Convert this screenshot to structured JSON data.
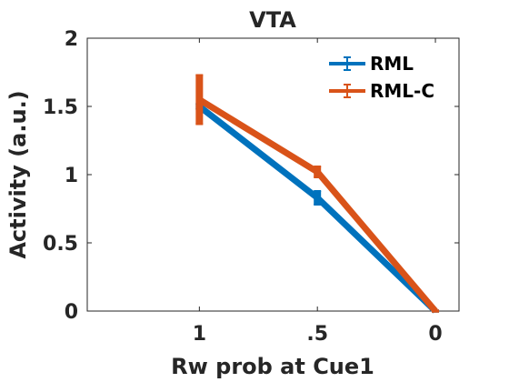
{
  "chart_data": {
    "type": "line",
    "title": "VTA",
    "xlabel": "Rw prob at Cue1",
    "ylabel": "Activity (a.u.)",
    "categories": [
      "1",
      ".5",
      "0"
    ],
    "x": [
      1,
      2,
      3
    ],
    "xlim": [
      0.05,
      3.2
    ],
    "ylim": [
      0,
      2
    ],
    "yticks": [
      0,
      0.5,
      1,
      1.5,
      2
    ],
    "ytick_labels": [
      "0",
      "0.5",
      "1",
      "1.5",
      "2"
    ],
    "grid": false,
    "legend_position": "top-right",
    "series": [
      {
        "name": "RML",
        "values": [
          1.5,
          0.83,
          0.0
        ],
        "errors": [
          0.02,
          0.05,
          0.005
        ],
        "color": "#0072BD"
      },
      {
        "name": "RML-C",
        "values": [
          1.55,
          1.02,
          0.0
        ],
        "errors": [
          0.18,
          0.04,
          0.005
        ],
        "color": "#D95319"
      }
    ]
  }
}
